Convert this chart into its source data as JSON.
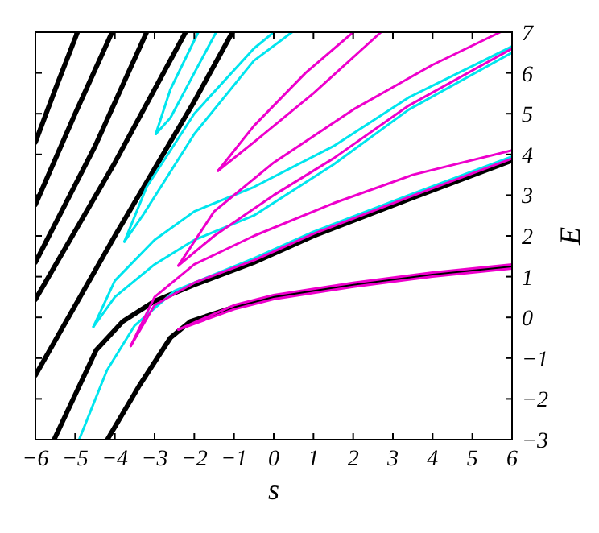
{
  "chart_data": {
    "type": "line",
    "xlabel": "s",
    "ylabel": "E",
    "xlim": [
      -6,
      6
    ],
    "ylim": [
      -3,
      7
    ],
    "xticks": [
      -6,
      -5,
      -4,
      -3,
      -2,
      -1,
      0,
      1,
      2,
      3,
      4,
      5,
      6
    ],
    "yticks": [
      -3,
      -2,
      -1,
      0,
      1,
      2,
      3,
      4,
      5,
      6,
      7
    ],
    "grid": false,
    "marker": "none",
    "line_style": "solid",
    "series": [
      {
        "color": "#000000",
        "x": [
          -6,
          -5.5,
          -4.94
        ],
        "values": [
          4.3,
          5.6,
          7
        ]
      },
      {
        "color": "#000000",
        "x": [
          -6,
          -5,
          -4.07
        ],
        "values": [
          2.77,
          5,
          7
        ]
      },
      {
        "color": "#000000",
        "x": [
          -6,
          -4.5,
          -3.2
        ],
        "values": [
          1.35,
          4.2,
          7
        ]
      },
      {
        "color": "#000000",
        "x": [
          -6,
          -4,
          -2.22
        ],
        "values": [
          0.44,
          3.8,
          7
        ]
      },
      {
        "color": "#000000",
        "x": [
          -6,
          -4,
          -2,
          -1.04
        ],
        "values": [
          -1.42,
          2,
          5.3,
          7
        ]
      },
      {
        "color": "#000000",
        "x": [
          -5.53,
          -4.47,
          -3.8,
          -3,
          -2,
          -0.5,
          1,
          3.4,
          6
        ],
        "values": [
          -3,
          -0.8,
          -0.1,
          0.4,
          0.8,
          1.35,
          2,
          2.9,
          3.85
        ]
      },
      {
        "color": "#000000",
        "x": [
          -4.19,
          -3.4,
          -2.6,
          -2.1,
          -1,
          0,
          2,
          4,
          6
        ],
        "values": [
          -3,
          -1.7,
          -0.5,
          -0.1,
          0.25,
          0.5,
          0.8,
          1.05,
          1.25
        ]
      },
      {
        "color": "#00e5ee",
        "x": [
          -2.97,
          -2.6,
          -2.1,
          -1.9
        ],
        "values": [
          4.5,
          5.6,
          6.6,
          7
        ]
      },
      {
        "color": "#00e5ee",
        "x": [
          -2.97,
          -2.6,
          -2,
          -1.45
        ],
        "values": [
          4.5,
          4.9,
          6,
          7
        ]
      },
      {
        "color": "#00e5ee",
        "x": [
          -3.76,
          -3.2,
          -2,
          -0.5,
          0
        ],
        "values": [
          1.86,
          3.2,
          5,
          6.6,
          7
        ]
      },
      {
        "color": "#00e5ee",
        "x": [
          -3.76,
          -3.3,
          -2,
          -0.5,
          0.46
        ],
        "values": [
          1.86,
          2.5,
          4.5,
          6.3,
          7
        ]
      },
      {
        "color": "#00e5ee",
        "x": [
          -4.54,
          -4,
          -3,
          -2,
          -0.5,
          1.5,
          3.4,
          6
        ],
        "values": [
          -0.23,
          0.9,
          1.9,
          2.6,
          3.2,
          4.2,
          5.4,
          6.65
        ]
      },
      {
        "color": "#00e5ee",
        "x": [
          -4.54,
          -4,
          -3,
          -2,
          -0.5,
          1.5,
          3.4,
          6
        ],
        "values": [
          -0.23,
          0.5,
          1.3,
          1.9,
          2.5,
          3.75,
          5.1,
          6.5
        ]
      },
      {
        "color": "#00e5ee",
        "x": [
          -4.9,
          -4.2,
          -3.5,
          -2.5,
          -0.5,
          1,
          3.4,
          6
        ],
        "values": [
          -3,
          -1.3,
          -0.2,
          0.65,
          1.45,
          2.1,
          3,
          3.95
        ]
      },
      {
        "color": "#ee00cc",
        "x": [
          -1.4,
          -0.5,
          0.8,
          2
        ],
        "values": [
          3.6,
          4.7,
          6,
          7
        ]
      },
      {
        "color": "#ee00cc",
        "x": [
          -1.4,
          -0.5,
          1,
          2.7
        ],
        "values": [
          3.6,
          4.3,
          5.5,
          7
        ]
      },
      {
        "color": "#ee00cc",
        "x": [
          -2.4,
          -1.5,
          0,
          2,
          4,
          5.7
        ],
        "values": [
          1.27,
          2.6,
          3.8,
          5.1,
          6.2,
          7
        ]
      },
      {
        "color": "#ee00cc",
        "x": [
          -2.4,
          -1.5,
          0,
          1.5,
          3.4,
          6
        ],
        "values": [
          1.27,
          2,
          3,
          3.9,
          5.2,
          6.6
        ]
      },
      {
        "color": "#ee00cc",
        "x": [
          -3.6,
          -3,
          -2,
          -0.5,
          1.5,
          3.5,
          6
        ],
        "values": [
          -0.7,
          0.5,
          1.3,
          2,
          2.8,
          3.5,
          4.1
        ]
      },
      {
        "color": "#ee00cc",
        "x": [
          -3.6,
          -3,
          -2,
          -0.5,
          1,
          3.4,
          6
        ],
        "values": [
          -0.7,
          0.3,
          0.85,
          1.4,
          2.05,
          2.95,
          3.9
        ]
      },
      {
        "color": "#ee00cc",
        "x": [
          -2.4,
          -1,
          0,
          2,
          4,
          6
        ],
        "values": [
          -0.3,
          0.3,
          0.55,
          0.85,
          1.1,
          1.3
        ]
      },
      {
        "color": "#ee00cc",
        "x": [
          -2.4,
          -1,
          0,
          2,
          4,
          6
        ],
        "values": [
          -0.3,
          0.2,
          0.45,
          0.75,
          1,
          1.2
        ]
      }
    ]
  }
}
